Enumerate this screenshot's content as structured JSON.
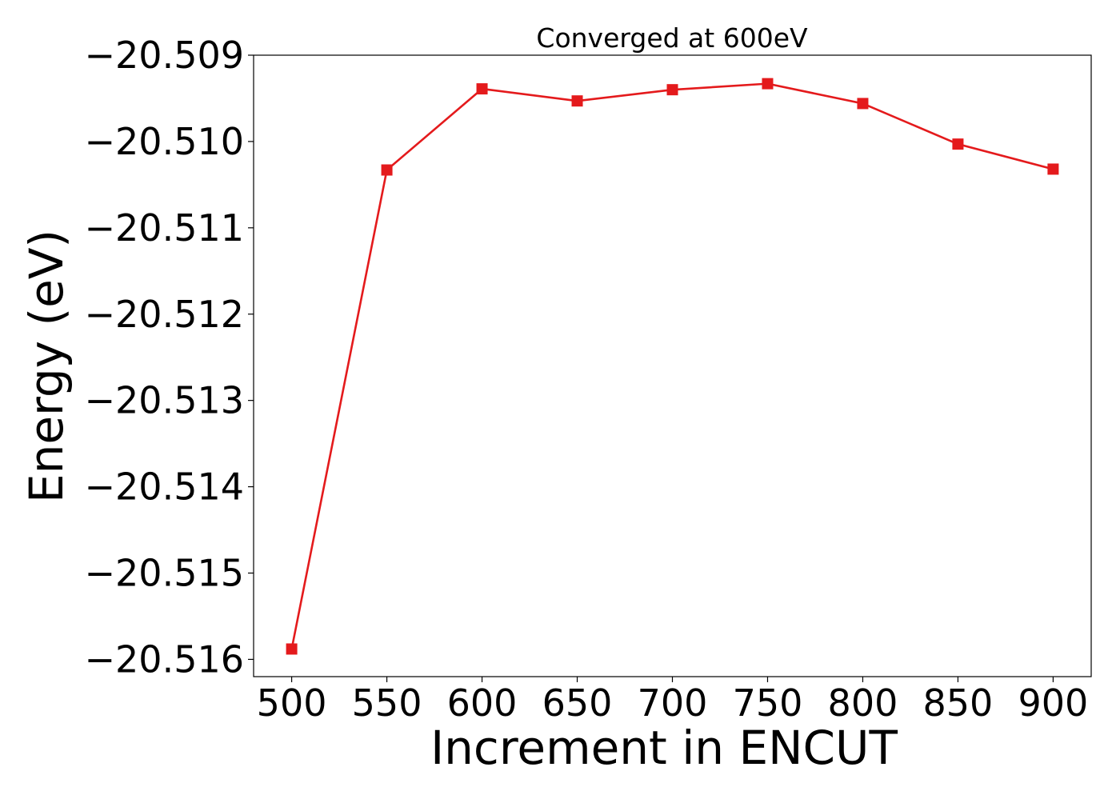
{
  "chart_data": {
    "type": "line",
    "title": "Converged at 600eV",
    "xlabel": "Increment in ENCUT",
    "ylabel": "Energy (eV)",
    "x": [
      500,
      550,
      600,
      650,
      700,
      750,
      800,
      850,
      900
    ],
    "xticks": [
      500,
      550,
      600,
      650,
      700,
      750,
      800,
      850,
      900
    ],
    "xtick_labels": [
      "500",
      "550",
      "600",
      "650",
      "700",
      "750",
      "800",
      "850",
      "900"
    ],
    "xlim": [
      480,
      920
    ],
    "yticks": [
      -20.509,
      -20.51,
      -20.511,
      -20.512,
      -20.513,
      -20.514,
      -20.515,
      -20.516
    ],
    "ytick_labels": [
      "−20.509",
      "−20.510",
      "−20.511",
      "−20.512",
      "−20.513",
      "−20.514",
      "−20.515",
      "−20.516"
    ],
    "ylim": [
      -20.5162,
      -20.509
    ],
    "grid": false,
    "series": [
      {
        "values": [
          -20.51588,
          -20.51033,
          -20.50939,
          -20.50953,
          -20.5094,
          -20.50933,
          -20.50956,
          -20.51003,
          -20.51032
        ],
        "color": "#e41a1c",
        "marker": "square"
      }
    ]
  }
}
